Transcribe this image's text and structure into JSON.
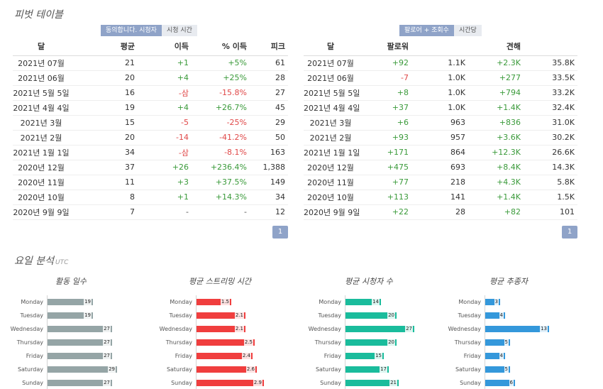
{
  "pivot": {
    "title": "피벗 테이블",
    "left_tabs": [
      {
        "label": "동의합니다. 시청자",
        "active": true
      },
      {
        "label": "시청 시간",
        "active": false
      }
    ],
    "right_tabs": [
      {
        "label": "팔로어 + 조회수",
        "active": true
      },
      {
        "label": "시간당",
        "active": false
      }
    ],
    "left_headers": [
      "달",
      "평균",
      "이득",
      "% 이득",
      "피크"
    ],
    "right_headers": [
      "달",
      "팔로워",
      "",
      "견해",
      ""
    ],
    "left_rows": [
      [
        "2021년 07월",
        "21",
        "+1",
        "+5%",
        "61"
      ],
      [
        "2021년 06월",
        "20",
        "+4",
        "+25%",
        "28"
      ],
      [
        "2021년 5월 5일",
        "16",
        "-삼",
        "-15.8%",
        "27"
      ],
      [
        "2021년 4월 4일",
        "19",
        "+4",
        "+26.7%",
        "45"
      ],
      [
        "2021년 3월",
        "15",
        "-5",
        "-25%",
        "29"
      ],
      [
        "2021년 2월",
        "20",
        "-14",
        "-41.2%",
        "50"
      ],
      [
        "2021년 1월 1일",
        "34",
        "-삼",
        "-8.1%",
        "163"
      ],
      [
        "2020년 12월",
        "37",
        "+26",
        "+236.4%",
        "1,388"
      ],
      [
        "2020년 11월",
        "11",
        "+3",
        "+37.5%",
        "149"
      ],
      [
        "2020년 10월",
        "8",
        "+1",
        "+14.3%",
        "34"
      ],
      [
        "2020년 9월 9일",
        "7",
        "-",
        "-",
        "12"
      ]
    ],
    "right_rows": [
      [
        "2021년 07월",
        "+92",
        "1.1K",
        "+2.3K",
        "35.8K"
      ],
      [
        "2021년 06월",
        "-7",
        "1.0K",
        "+277",
        "33.5K"
      ],
      [
        "2021년 5월 5일",
        "+8",
        "1.0K",
        "+794",
        "33.2K"
      ],
      [
        "2021년 4월 4일",
        "+37",
        "1.0K",
        "+1.4K",
        "32.4K"
      ],
      [
        "2021년 3월",
        "+6",
        "963",
        "+836",
        "31.0K"
      ],
      [
        "2021년 2월",
        "+93",
        "957",
        "+3.6K",
        "30.2K"
      ],
      [
        "2021년 1월 1일",
        "+171",
        "864",
        "+12.3K",
        "26.6K"
      ],
      [
        "2020년 12월",
        "+475",
        "693",
        "+8.4K",
        "14.3K"
      ],
      [
        "2020년 11월",
        "+77",
        "218",
        "+4.3K",
        "5.8K"
      ],
      [
        "2020년 10월",
        "+113",
        "141",
        "+1.4K",
        "1.5K"
      ],
      [
        "2020년 9월 9일",
        "+22",
        "28",
        "+82",
        "101"
      ]
    ],
    "left_page": "1",
    "right_page": "1"
  },
  "weekday": {
    "title": "요일 분석",
    "subtitle": "UTC",
    "charts": [
      {
        "title": "활동 일수",
        "color": "#95a5a6",
        "max": 35,
        "days": [
          "Monday",
          "Tuesday",
          "Wednesday",
          "Thursday",
          "Friday",
          "Saturday",
          "Sunday"
        ],
        "values": [
          19,
          19,
          27,
          27,
          27,
          29,
          27
        ]
      },
      {
        "title": "평균 스트리밍 시간",
        "color": "#f03e3e",
        "max": 3.6,
        "days": [
          "Monday",
          "Tuesday",
          "Wednesday",
          "Thursday",
          "Friday",
          "Saturday",
          "Sunday"
        ],
        "values": [
          1.5,
          2.1,
          2.1,
          2.5,
          2.4,
          2.6,
          2.9
        ]
      },
      {
        "title": "평균 시청자 수",
        "color": "#1abc9c",
        "max": 33,
        "days": [
          "Monday",
          "Tuesday",
          "Wednesday",
          "Thursday",
          "Friday",
          "Saturday",
          "Sunday"
        ],
        "values": [
          14,
          20,
          27,
          20,
          15,
          17,
          21
        ]
      },
      {
        "title": "평균 추종자",
        "color": "#3498db",
        "max": 17,
        "days": [
          "Monday",
          "Tuesday",
          "Wednesday",
          "Thursday",
          "Friday",
          "Saturday",
          "Sunday"
        ],
        "values": [
          3,
          4,
          13,
          5,
          4,
          5,
          6
        ]
      }
    ]
  }
}
